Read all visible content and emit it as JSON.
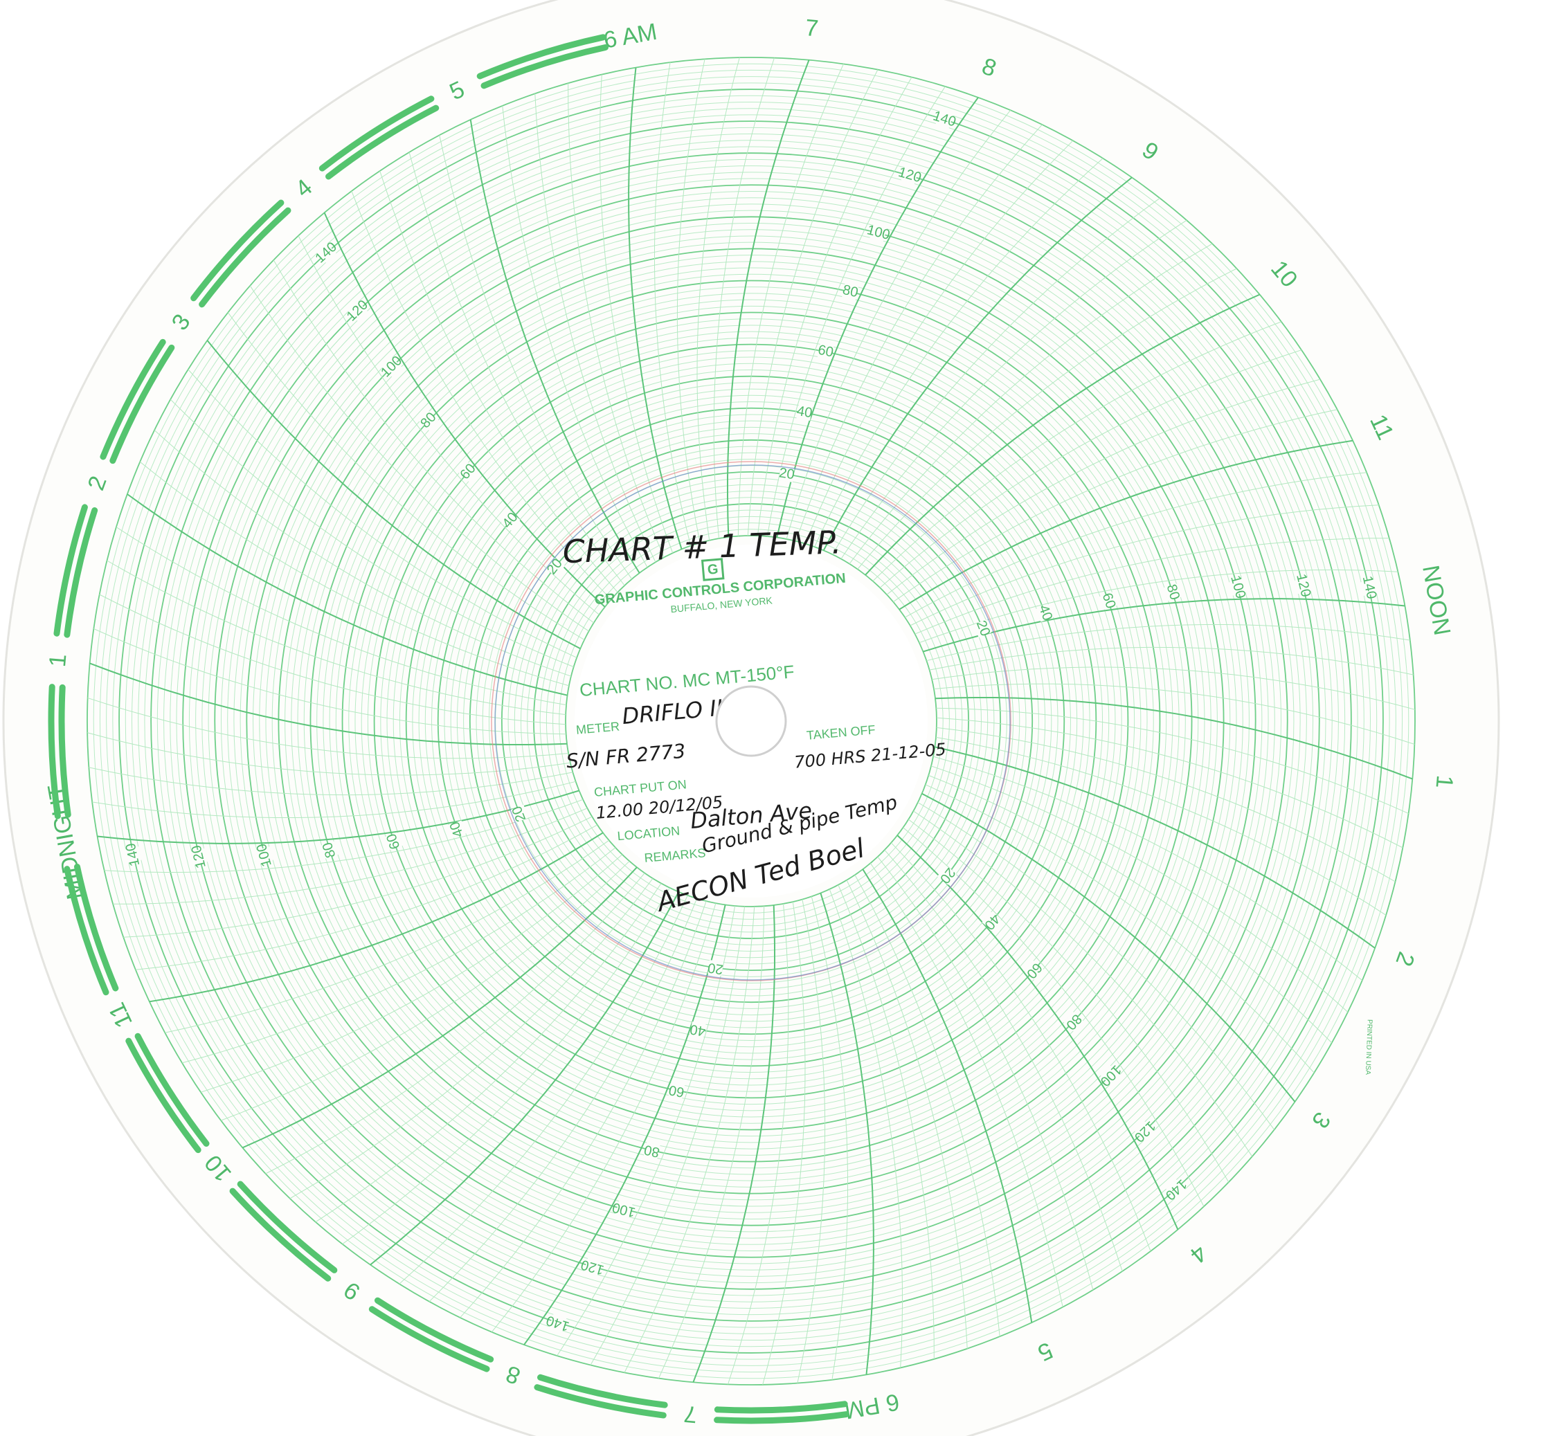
{
  "hour_labels": [
    "MIDNIGHT",
    "1",
    "2",
    "3",
    "4",
    "5",
    "6 AM",
    "7",
    "8",
    "9",
    "10",
    "11",
    "NOON",
    "1",
    "2",
    "3",
    "4",
    "5",
    "6 PM",
    "7",
    "8",
    "9",
    "10",
    "11"
  ],
  "scale_labels": [
    20,
    40,
    60,
    80,
    100,
    120,
    140
  ],
  "label": {
    "logo": "G",
    "company": "GRAPHIC CONTROLS CORPORATION",
    "city": "BUFFALO, NEW YORK",
    "chart_no": "CHART NO. MC MT-150°F",
    "meter": "METER",
    "taken_off": "TAKEN OFF",
    "chart_put_on": "CHART PUT ON",
    "location": "LOCATION",
    "remarks": "REMARKS"
  },
  "handwriting": {
    "title": "CHART # 1 TEMP.",
    "meter": "DRIFLO II",
    "serial": "S/N FR 2773",
    "taken_off": "700 HRS 21-12-05",
    "put_on": "12.00 20/12/05",
    "location": "Dalton Ave",
    "remarks": "Ground & pipe Temp",
    "signature": "AECON Ted Boel"
  },
  "footer": "PRINTED IN USA"
}
